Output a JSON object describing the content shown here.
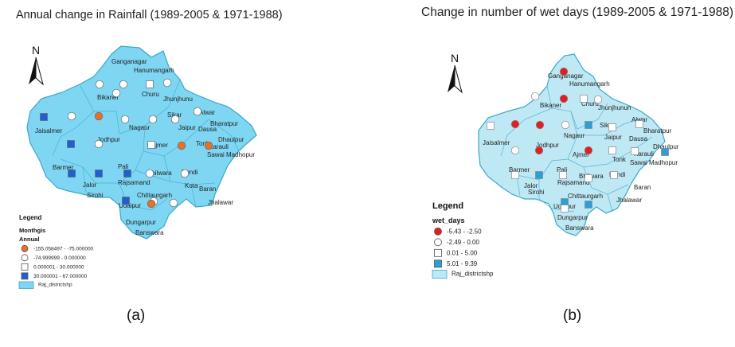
{
  "panels": [
    {
      "id": "a",
      "title": "Annual change in Rainfall (1989-2005 & 1971-1988)",
      "caption": "(a)",
      "north_label": "N",
      "legend": {
        "title": "Legend",
        "layer": "Monthgis",
        "field": "Annual",
        "classes": [
          {
            "shape": "circle",
            "color": "#e8702a",
            "label": "-155.058497 - -75.000000"
          },
          {
            "shape": "circle",
            "color": "#ffffff",
            "label": "-74.999999 - 0.000000"
          },
          {
            "shape": "square",
            "color": "#ffffff",
            "label": "0.000001 - 30.000000"
          },
          {
            "shape": "square",
            "color": "#1f5fd0",
            "label": "30.000001 - 67.000000"
          }
        ],
        "district_layer": "Raj_districtshp"
      },
      "districts": [
        "Ganganagar",
        "Hanumangarh",
        "Bikaner",
        "Churu",
        "Jhunjhunu",
        "Jaisalmer",
        "Nagaur",
        "Sikar",
        "Alwar",
        "Bharatpur",
        "Jodhpur",
        "Jaipur",
        "Dausa",
        "Dhaulpur",
        "Ajmer",
        "Tonk",
        "Karauli",
        "Sawai Madhopur",
        "Barmer",
        "Pali",
        "Bhilwara",
        "Bundi",
        "Jalor",
        "Rajsamand",
        "Kota",
        "Baran",
        "Sirohi",
        "Chittaurgarh",
        "Udaipur",
        "Jhalawar",
        "Dungarpur",
        "Banswara"
      ]
    },
    {
      "id": "b",
      "title": "Change in number of wet days (1989-2005 & 1971-1988)",
      "caption": "(b)",
      "north_label": "N",
      "legend": {
        "title": "Legend",
        "field": "wet_days",
        "classes": [
          {
            "shape": "circle",
            "color": "#e02020",
            "label": "-5.43 - -2.50"
          },
          {
            "shape": "circle",
            "color": "#ffffff",
            "label": "-2.49 - 0.00"
          },
          {
            "shape": "square",
            "color": "#ffffff",
            "label": "0.01 - 5.00"
          },
          {
            "shape": "square",
            "color": "#2a9fd8",
            "label": "5.01 - 9.39"
          }
        ],
        "district_layer": "Raj_districtshp"
      },
      "districts": [
        "Ganganagar",
        "Hanumangarh",
        "Bikaner",
        "Churu",
        "Jhunjhunun",
        "Jaisalmer",
        "Nagaur",
        "Sikar",
        "Alwar",
        "Bharatpur",
        "Jodhpur",
        "Jaipur",
        "Dausa",
        "Dhaulpur",
        "Ajmer",
        "Tonk",
        "Karauli",
        "Sawai Madhopur",
        "Barmer",
        "Pali",
        "Bhilwara",
        "Bundi",
        "Jalor",
        "Rajsamand",
        "Baran",
        "Sirohi",
        "Chittaurgarh",
        "Udaipur",
        "Jhalawar",
        "Dungarpur",
        "Banswara"
      ]
    }
  ],
  "colors": {
    "map_fill_a": "#7fd6f2",
    "map_fill_b": "#bfe8f5",
    "border": "#3aa7c9"
  }
}
